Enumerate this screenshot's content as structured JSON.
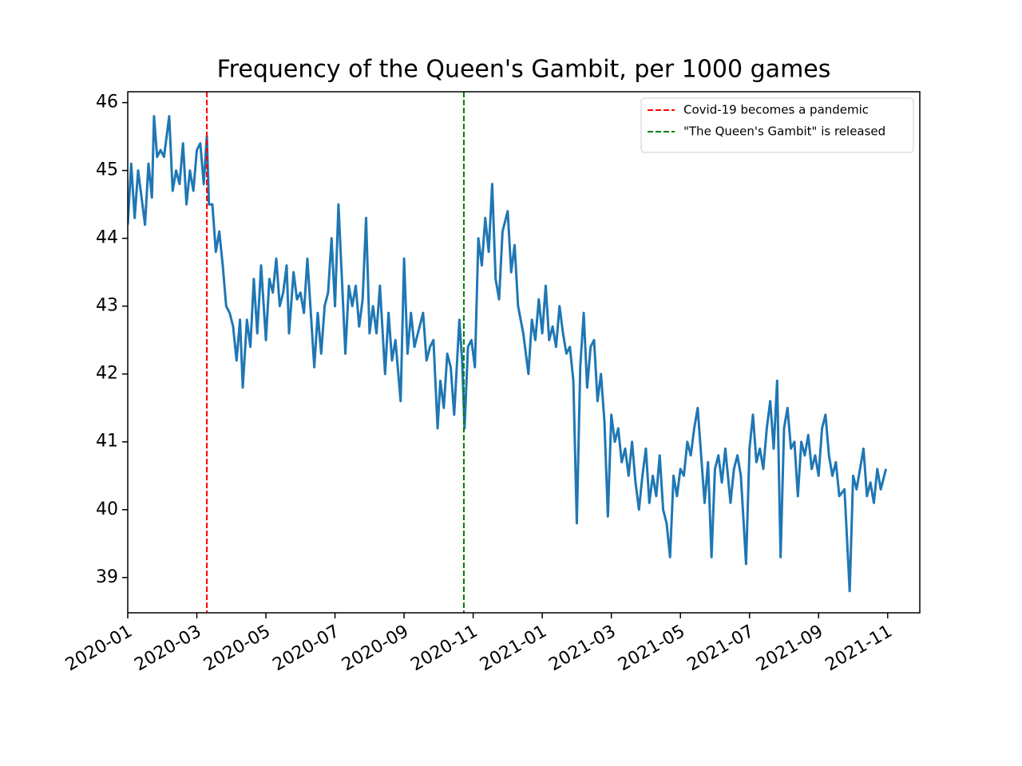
{
  "chart_data": {
    "type": "line",
    "title": "Frequency of the Queen's Gambit, per 1000 games",
    "x": [
      0,
      0.1,
      0.2,
      0.3,
      0.4,
      0.5,
      0.6,
      0.7,
      0.76,
      0.85,
      0.95,
      1.05,
      1.2,
      1.3,
      1.4,
      1.5,
      1.6,
      1.7,
      1.8,
      1.9,
      2.0,
      2.1,
      2.2,
      2.29,
      2.35,
      2.45,
      2.55,
      2.65,
      2.75,
      2.85,
      2.95,
      3.05,
      3.15,
      3.25,
      3.33,
      3.45,
      3.55,
      3.65,
      3.75,
      3.86,
      4.0,
      4.1,
      4.2,
      4.3,
      4.4,
      4.5,
      4.6,
      4.67,
      4.8,
      4.9,
      5.0,
      5.1,
      5.2,
      5.3,
      5.4,
      5.5,
      5.6,
      5.7,
      5.8,
      5.9,
      6.0,
      6.1,
      6.2,
      6.3,
      6.4,
      6.5,
      6.6,
      6.7,
      6.8,
      6.9,
      7.0,
      7.1,
      7.2,
      7.3,
      7.45,
      7.55,
      7.65,
      7.75,
      7.9,
      8.0,
      8.1,
      8.2,
      8.3,
      8.4,
      8.55,
      8.65,
      8.75,
      8.85,
      8.97,
      9.05,
      9.15,
      9.25,
      9.35,
      9.45,
      9.6,
      9.68,
      9.75,
      9.85,
      9.95,
      10.05,
      10.15,
      10.25,
      10.35,
      10.45,
      10.55,
      10.65,
      10.75,
      10.85,
      11.0,
      11.1,
      11.2,
      11.3,
      11.45,
      11.6,
      11.7,
      11.8,
      11.9,
      12.0,
      12.1,
      12.2,
      12.3,
      12.4,
      12.5,
      12.6,
      12.7,
      12.8,
      12.9,
      13.0,
      13.1,
      13.2,
      13.3,
      13.4,
      13.5,
      13.6,
      13.7,
      13.8,
      13.9,
      14.0,
      14.1,
      14.2,
      14.3,
      14.4,
      14.5,
      14.6,
      14.7,
      14.8,
      14.9,
      15.0,
      15.1,
      15.2,
      15.3,
      15.4,
      15.5,
      15.6,
      15.7,
      15.8,
      15.9,
      16.0,
      16.1,
      16.2,
      16.3,
      16.4,
      16.5,
      16.6,
      16.7,
      16.8,
      16.9,
      17.0,
      17.1,
      17.2,
      17.3,
      17.45,
      17.55,
      17.65,
      17.75,
      17.9,
      18.0,
      18.1,
      18.2,
      18.3,
      18.4,
      18.5,
      18.6,
      18.7,
      18.8,
      18.9,
      19.0,
      19.1,
      19.2,
      19.3,
      19.4,
      19.5,
      19.6,
      19.7,
      19.8,
      19.9,
      20.0,
      20.1,
      20.2,
      20.3,
      20.4,
      20.5,
      20.6,
      20.75,
      20.9,
      21.0,
      21.1,
      21.2,
      21.3,
      21.4,
      21.5,
      21.6,
      21.7,
      21.8,
      21.95
    ],
    "series": [
      {
        "color": "#1f77b4",
        "values": [
          44.2,
          45.1,
          44.3,
          45.0,
          44.6,
          44.2,
          45.1,
          44.6,
          45.8,
          45.2,
          45.3,
          45.2,
          45.8,
          44.7,
          45.0,
          44.8,
          45.4,
          44.5,
          45.0,
          44.7,
          45.3,
          45.4,
          44.8,
          45.5,
          44.5,
          44.5,
          43.8,
          44.1,
          43.6,
          43.0,
          42.9,
          42.7,
          42.2,
          42.8,
          41.8,
          42.8,
          42.4,
          43.4,
          42.6,
          43.6,
          42.5,
          43.4,
          43.2,
          43.7,
          43.0,
          43.2,
          43.6,
          42.6,
          43.5,
          43.1,
          43.2,
          42.9,
          43.7,
          42.9,
          42.1,
          42.9,
          42.3,
          43.0,
          43.2,
          44.0,
          43.0,
          44.5,
          43.4,
          42.3,
          43.3,
          43.0,
          43.3,
          42.7,
          43.1,
          44.3,
          42.6,
          43.0,
          42.6,
          43.3,
          42.0,
          42.9,
          42.2,
          42.5,
          41.6,
          43.7,
          42.3,
          42.9,
          42.4,
          42.6,
          42.9,
          42.2,
          42.4,
          42.5,
          41.2,
          41.9,
          41.5,
          42.3,
          42.1,
          41.4,
          42.8,
          42.2,
          41.2,
          42.4,
          42.5,
          42.1,
          44.0,
          43.6,
          44.3,
          43.8,
          44.8,
          43.4,
          43.1,
          44.1,
          44.4,
          43.5,
          43.9,
          43.0,
          42.6,
          42.0,
          42.8,
          42.5,
          43.1,
          42.6,
          43.3,
          42.5,
          42.7,
          42.4,
          43.0,
          42.6,
          42.3,
          42.4,
          41.9,
          39.8,
          42.1,
          42.9,
          41.8,
          42.4,
          42.5,
          41.6,
          42.0,
          41.3,
          39.9,
          41.4,
          41.0,
          41.2,
          40.7,
          40.9,
          40.5,
          41.0,
          40.4,
          40.0,
          40.5,
          40.9,
          40.1,
          40.5,
          40.2,
          40.8,
          40.0,
          39.8,
          39.3,
          40.5,
          40.2,
          40.6,
          40.5,
          41.0,
          40.8,
          41.2,
          41.5,
          40.8,
          40.1,
          40.7,
          39.3,
          40.6,
          40.8,
          40.4,
          40.9,
          40.1,
          40.6,
          40.8,
          40.5,
          39.2,
          40.9,
          41.4,
          40.7,
          40.9,
          40.6,
          41.2,
          41.6,
          40.9,
          41.9,
          39.3,
          41.2,
          41.5,
          40.9,
          41.0,
          40.2,
          41.0,
          40.8,
          41.1,
          40.6,
          40.8,
          40.5,
          41.2,
          41.4,
          40.8,
          40.5,
          40.7,
          40.2,
          40.3,
          38.8,
          40.5,
          40.3,
          40.6,
          40.9,
          40.2,
          40.4,
          40.1,
          40.6,
          40.3,
          40.6
        ]
      }
    ],
    "vlines": [
      {
        "x": 2.29,
        "label": "Covid-19 becomes a pandemic",
        "color": "#ff0000"
      },
      {
        "x": 9.73,
        "label": "\"The Queen's Gambit\" is released",
        "color": "#008000"
      }
    ],
    "legend": "upper right",
    "xlim": [
      0,
      22.93
    ],
    "xticks": [
      {
        "value": 0,
        "label": "2020-01"
      },
      {
        "value": 2,
        "label": "2020-03"
      },
      {
        "value": 4,
        "label": "2020-05"
      },
      {
        "value": 6,
        "label": "2020-07"
      },
      {
        "value": 8,
        "label": "2020-09"
      },
      {
        "value": 10,
        "label": "2020-11"
      },
      {
        "value": 12,
        "label": "2021-01"
      },
      {
        "value": 14,
        "label": "2021-03"
      },
      {
        "value": 16,
        "label": "2021-05"
      },
      {
        "value": 18,
        "label": "2021-07"
      },
      {
        "value": 20,
        "label": "2021-09"
      },
      {
        "value": 22,
        "label": "2021-11"
      }
    ],
    "ylim": [
      38.48,
      46.16
    ],
    "yticks": [
      39,
      40,
      41,
      42,
      43,
      44,
      45,
      46
    ]
  }
}
